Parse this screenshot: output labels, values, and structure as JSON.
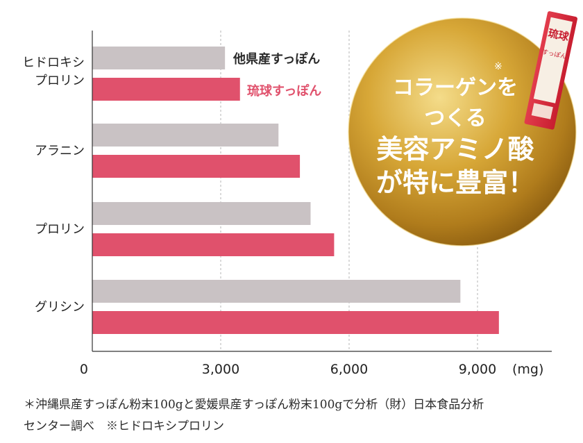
{
  "chart_data": {
    "type": "bar",
    "orientation": "horizontal",
    "categories": [
      "ヒドロキシ\nプロリン",
      "アラニン",
      "プロリン",
      "グリシン"
    ],
    "series": [
      {
        "name": "他県産すっぽん",
        "values": [
          3100,
          4350,
          5100,
          8600
        ],
        "color": "#c9c2c4"
      },
      {
        "name": "琉球すっぽん",
        "values": [
          3450,
          4850,
          5650,
          9500
        ],
        "color": "#e0516c"
      }
    ],
    "x_ticks": [
      "0",
      "3,000",
      "6,000",
      "9,000"
    ],
    "x_unit": "(mg)",
    "xlim": [
      0,
      10500
    ],
    "grid": "vertical dashed"
  },
  "badge": {
    "note_mark": "※",
    "line1": "コラーゲンを",
    "line2": "つくる",
    "line3": "美容アミノ酸",
    "line4": "が特に豊富！"
  },
  "package": {
    "label1": "琉球",
    "label2": "すっぽん"
  },
  "footnote": {
    "line1": "＊沖縄県産すっぽん粉末100gと愛媛県産すっぽん粉末100gで分析（財）日本食品分析",
    "line2": "センター調べ　※ヒドロキシプロリン"
  },
  "colors": {
    "gold": "#c99a2e",
    "pink": "#e0516c",
    "gray": "#c9c2c4"
  }
}
